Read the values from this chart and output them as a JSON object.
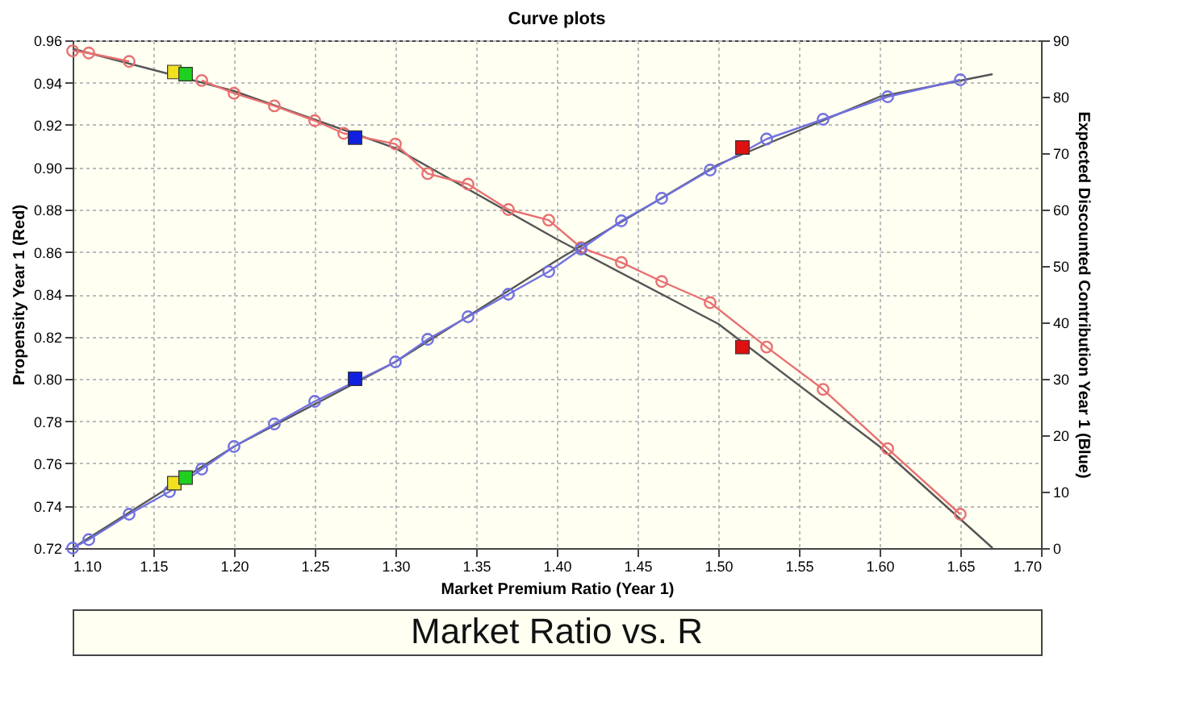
{
  "chart_data": {
    "type": "line",
    "title": "Curve plots",
    "xlabel": "Market Premium Ratio (Year 1)",
    "ylabel": "Propensity Year 1 (Red)",
    "y2label": "Expected Discounted Contribution Year 1 (Blue)",
    "annotations": [
      "Market Ratio vs. R"
    ],
    "xlim": [
      1.1,
      1.7
    ],
    "xticks": [
      {
        "value": 1.1,
        "label": "1.10"
      },
      {
        "value": 1.15,
        "label": "1.15"
      },
      {
        "value": 1.2,
        "label": "1.20"
      },
      {
        "value": 1.25,
        "label": "1.25"
      },
      {
        "value": 1.3,
        "label": "1.30"
      },
      {
        "value": 1.35,
        "label": "1.35"
      },
      {
        "value": 1.4,
        "label": "1.40"
      },
      {
        "value": 1.45,
        "label": "1.45"
      },
      {
        "value": 1.5,
        "label": "1.50"
      },
      {
        "value": 1.55,
        "label": "1.55"
      },
      {
        "value": 1.6,
        "label": "1.60"
      },
      {
        "value": 1.65,
        "label": "1.65"
      },
      {
        "value": 1.7,
        "label": "1.70"
      }
    ],
    "ylim": [
      0.72,
      0.96
    ],
    "yticks": [
      0.72,
      0.74,
      0.76,
      0.78,
      {
        "value": 0.8,
        "label": "0.80"
      },
      0.82,
      0.84,
      0.86,
      0.88,
      {
        "value": 0.9,
        "label": "0.90"
      },
      0.92,
      0.94,
      0.96
    ],
    "y2lim": [
      0,
      90
    ],
    "y2ticks": [
      0,
      10,
      20,
      30,
      40,
      50,
      60,
      70,
      80,
      90
    ],
    "grid": true,
    "series": [
      {
        "marker": "none",
        "color": "#555555",
        "axis": "y",
        "x": [
          1.1,
          1.2,
          1.3,
          1.4,
          1.5,
          1.6,
          1.67
        ],
        "values": [
          0.956,
          0.936,
          0.909,
          0.866,
          0.826,
          0.768,
          0.72
        ]
      },
      {
        "marker": "circle",
        "color": "#e87070",
        "axis": "y",
        "x": [
          1.1,
          1.11,
          1.135,
          1.16,
          1.18,
          1.2,
          1.225,
          1.25,
          1.268,
          1.3,
          1.32,
          1.345,
          1.37,
          1.395,
          1.415,
          1.44,
          1.465,
          1.495,
          1.53,
          1.565,
          1.605,
          1.65
        ],
        "values": [
          0.955,
          0.954,
          0.95,
          null,
          0.941,
          0.935,
          0.929,
          0.922,
          0.916,
          0.911,
          0.897,
          0.892,
          0.88,
          0.875,
          0.862,
          0.855,
          0.846,
          0.836,
          0.815,
          0.795,
          0.767,
          0.736
        ]
      },
      {
        "marker": "none",
        "color": "#555555",
        "axis": "y2",
        "x": [
          1.1,
          1.2,
          1.3,
          1.4,
          1.5,
          1.6,
          1.67
        ],
        "values": [
          0,
          18,
          33,
          51,
          68,
          80,
          84
        ]
      },
      {
        "marker": "circle",
        "color": "#7070e0",
        "axis": "y2",
        "x": [
          1.1,
          1.11,
          1.135,
          1.16,
          1.18,
          1.2,
          1.225,
          1.25,
          1.3,
          1.32,
          1.345,
          1.37,
          1.395,
          1.415,
          1.44,
          1.465,
          1.495,
          1.53,
          1.565,
          1.605,
          1.65
        ],
        "values": [
          0,
          1.5,
          6,
          10,
          14,
          18,
          22,
          26,
          33,
          37,
          41,
          45,
          49,
          53,
          58,
          62,
          67,
          72.5,
          76,
          80,
          83
        ]
      },
      {
        "type": "scatter",
        "marker": "square",
        "color": "#f0e020",
        "axis": "y",
        "x": [
          1.163
        ],
        "values": [
          0.945
        ]
      },
      {
        "type": "scatter",
        "marker": "square",
        "color": "#20d020",
        "axis": "y",
        "x": [
          1.17
        ],
        "values": [
          0.944
        ]
      },
      {
        "type": "scatter",
        "marker": "square",
        "color": "#1020e0",
        "axis": "y",
        "x": [
          1.275
        ],
        "values": [
          0.914
        ]
      },
      {
        "type": "scatter",
        "marker": "square",
        "color": "#e01010",
        "axis": "y",
        "x": [
          1.515
        ],
        "values": [
          0.815
        ]
      },
      {
        "type": "scatter",
        "marker": "square",
        "color": "#f0e020",
        "axis": "y2",
        "x": [
          1.163
        ],
        "values": [
          11.5
        ]
      },
      {
        "type": "scatter",
        "marker": "square",
        "color": "#20d020",
        "axis": "y2",
        "x": [
          1.17
        ],
        "values": [
          12.5
        ]
      },
      {
        "type": "scatter",
        "marker": "square",
        "color": "#1020e0",
        "axis": "y2",
        "x": [
          1.275
        ],
        "values": [
          30
        ]
      },
      {
        "type": "scatter",
        "marker": "square",
        "color": "#e01010",
        "axis": "y2",
        "x": [
          1.515
        ],
        "values": [
          71
        ]
      }
    ]
  }
}
